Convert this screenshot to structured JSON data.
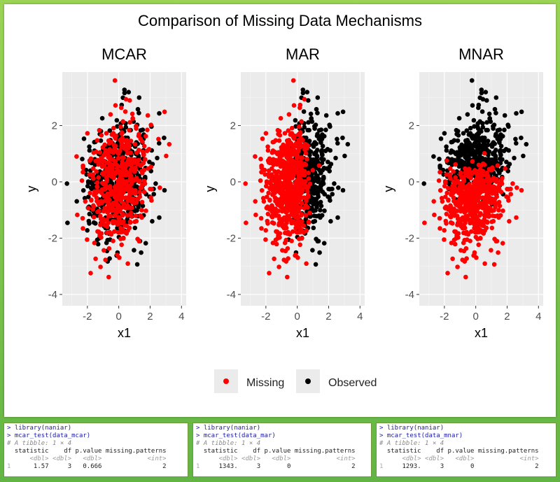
{
  "figure": {
    "title": "Comparison of Missing Data Mechanisms",
    "colors": {
      "missing": "#ff0000",
      "observed": "#000000",
      "panel_bg": "#ebebeb",
      "grid": "#ffffff"
    }
  },
  "chart_data": {
    "type": "scatter",
    "title": "Comparison of Missing Data Mechanisms",
    "panels": [
      {
        "title": "MCAR",
        "xlabel": "x1",
        "ylabel": "y",
        "mechanism": "random"
      },
      {
        "title": "MAR",
        "xlabel": "x1",
        "ylabel": "y",
        "mechanism": "x1"
      },
      {
        "title": "MNAR",
        "xlabel": "x1",
        "ylabel": "y",
        "mechanism": "y"
      }
    ],
    "xlim": [
      -3.6,
      4.3
    ],
    "ylim": [
      -4.4,
      3.9
    ],
    "xticks": [
      "-2",
      "0",
      "2",
      "4"
    ],
    "yticks": [
      "2",
      "0",
      "-2",
      "-4"
    ],
    "xtick_values": [
      -2,
      0,
      2,
      4
    ],
    "ytick_values": [
      2,
      0,
      -2,
      -4
    ],
    "legend": {
      "position": "bottom",
      "entries": [
        "Missing",
        "Observed"
      ]
    },
    "point_count_per_panel": 1000
  },
  "consoles": [
    {
      "cmd1": "library(naniar)",
      "cmd2": "mcar_test(data_mcar)",
      "comment": "# A tibble: 1 × 4",
      "header": "  statistic    df p.value missing.patterns",
      "types": "      <dbl> <dbl>   <dbl>            <int>",
      "row": "      1.57     3   0.666                2"
    },
    {
      "cmd1": "library(naniar)",
      "cmd2": "mcar_test(data_mar)",
      "comment": "# A tibble: 1 × 4",
      "header": "  statistic    df p.value missing.patterns",
      "types": "      <dbl> <dbl>   <dbl>            <int>",
      "row": "     1343.     3       0                2"
    },
    {
      "cmd1": "library(naniar)",
      "cmd2": "mcar_test(data_mnar)",
      "comment": "# A tibble: 1 × 4",
      "header": "  statistic    df p.value missing.patterns",
      "types": "      <dbl> <dbl>   <dbl>            <int>",
      "row": "     1293.     3       0                2"
    }
  ]
}
